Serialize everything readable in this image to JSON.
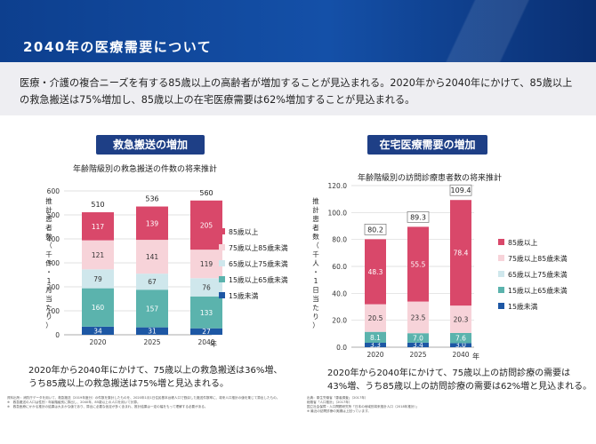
{
  "header": {
    "title": "2040年の医療需要について"
  },
  "intro": {
    "text": "医療・介護の複合ニーズを有する85歳以上の高齢者が増加することが見込まれる。2020年から2040年にかけて、85歳以上の救急搬送は75%増加し、85歳以上の在宅医療需要は62%増加することが見込まれる。"
  },
  "left": {
    "badge": "救急搬送の増加",
    "chart_title": "年齢階級別の救急搬送の件数の将来推計",
    "ylabel": "推計患者数（千件・1月当たり）",
    "x_unit": "年",
    "summary_line1": "2020年から2040年にかけて、75歳以上の救急搬送は36%増、",
    "summary_line2": "うち85歳以上の救急搬送は75%増と見込まれる。",
    "notes": [
      "資料出所：消防庁データを用いて、救急搬送（2019年度分）の件数を集計したものを、2020年1月1日住民基本台帳人口で割戻した搬送件数率に、将来人口推計の値を乗じて算出したもの。",
      "※　救急搬送の人口は性別・年齢階級別に算出し、2040年、85歳以上の人口を用いて計算。",
      "※　救急医療にかかる推計の結果は大まかな値であり、算出に必要な仮定が多く含まれ、推計結果は一定の幅をもって理解する必要がある。"
    ]
  },
  "right": {
    "badge": "在宅医療需要の増加",
    "chart_title": "年齢階級別の訪問診療患者数の将来推計",
    "ylabel": "推計患者数（千人・1日当たり）",
    "x_unit": "年",
    "summary_line1": "2020年から2040年にかけて、75歳以上の訪問診療の需要は",
    "summary_line2": "43%増、うち85歳以上の訪問診療の需要は62%増と見込まれる。",
    "notes": [
      "出典：厚生労働省「患者調査」（2017年）",
      "総務省「人口推計」（2017年）",
      "国立社会保障・人口問題研究所「日本の地域別将来推計人口（2018年推計）」",
      "※ 最近の訪問診療の実績は上回っています。"
    ]
  },
  "colors": {
    "s85": "#d9486a",
    "s75_85": "#f7d3d9",
    "s65_75": "#cfe7ec",
    "s15_65": "#5bb3ad",
    "s_u15": "#1d57a4",
    "header": "#0d3f8e",
    "badge": "#1e3f86"
  },
  "chart_data": [
    {
      "type": "bar",
      "stacked": true,
      "title": "年齢階級別の救急搬送の件数の将来推計",
      "ylabel": "推計患者数（千件・1月当たり）",
      "xlabel": "年",
      "categories": [
        "2020",
        "2025",
        "2040"
      ],
      "ylim": [
        0,
        600
      ],
      "yticks": [
        "0",
        "100",
        "200",
        "300",
        "400",
        "500",
        "600"
      ],
      "totals": [
        "510",
        "536",
        "560"
      ],
      "series": [
        {
          "name": "15歳未満",
          "values": [
            34,
            31,
            27
          ]
        },
        {
          "name": "15歳以上65歳未満",
          "values": [
            160,
            157,
            133
          ]
        },
        {
          "name": "65歳以上75歳未満",
          "values": [
            79,
            67,
            76
          ]
        },
        {
          "name": "75歳以上85歳未満",
          "values": [
            121,
            141,
            119
          ]
        },
        {
          "name": "85歳以上",
          "values": [
            117,
            139,
            205
          ]
        }
      ]
    },
    {
      "type": "bar",
      "stacked": true,
      "title": "年齢階級別の訪問診療患者数の将来推計",
      "ylabel": "推計患者数（千人・1日当たり）",
      "xlabel": "年",
      "categories": [
        "2020",
        "2025",
        "2040"
      ],
      "ylim": [
        0,
        120
      ],
      "yticks": [
        "0.0",
        "20.0",
        "40.0",
        "60.0",
        "80.0",
        "100.0",
        "120.0"
      ],
      "totals": [
        "80.2",
        "89.3",
        "109.4"
      ],
      "series": [
        {
          "name": "15歳未満",
          "values": [
            3.3,
            3.4,
            3.0
          ]
        },
        {
          "name": "15歳以上65歳未満",
          "values": [
            8.1,
            7.0,
            7.6
          ]
        },
        {
          "name": "65歳以上75歳未満",
          "values": [
            0.0,
            0.0,
            0.0
          ]
        },
        {
          "name": "75歳以上85歳未満",
          "values": [
            20.5,
            23.5,
            20.3
          ]
        },
        {
          "name": "85歳以上",
          "values": [
            48.3,
            55.5,
            78.4
          ]
        }
      ]
    }
  ]
}
